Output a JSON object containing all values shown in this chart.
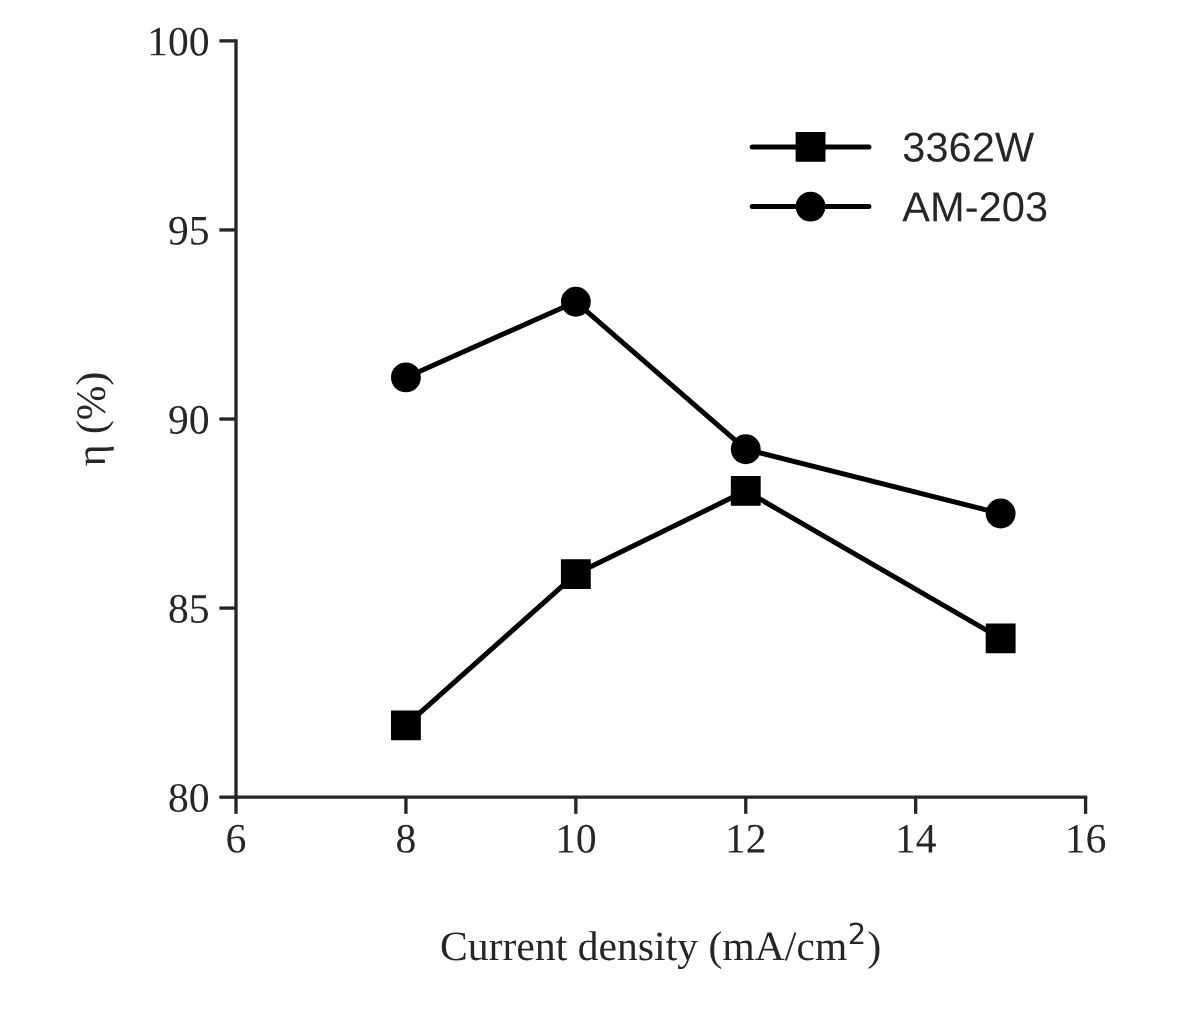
{
  "chart_data": {
    "type": "line",
    "xlabel": "Current density (mA/cm$^{2}$)",
    "ylabel": "η (%)",
    "x": [
      8,
      10,
      12,
      15
    ],
    "series": [
      {
        "name": "3362W",
        "color": "#000000",
        "marker": "square",
        "values": [
          81.9,
          85.9,
          88.1,
          84.2
        ]
      },
      {
        "name": "AM-203",
        "color": "#000000",
        "marker": "circle",
        "values": [
          91.1,
          93.1,
          89.2,
          87.5
        ]
      }
    ],
    "xlim": [
      6,
      16
    ],
    "xticks": [
      6,
      8,
      10,
      12,
      14,
      16
    ],
    "ylim": [
      80,
      100
    ],
    "yticks": [
      80,
      85,
      90,
      95,
      100
    ],
    "grid": false,
    "legend": "top right",
    "line_style": "solid"
  }
}
